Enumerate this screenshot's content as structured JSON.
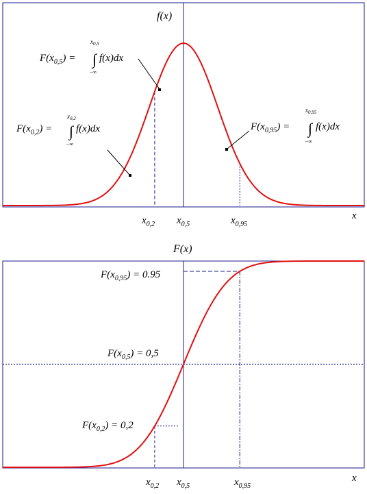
{
  "colors": {
    "curve": "#e01010",
    "frame": "#1a1a8c",
    "guide": "#1a1a8c",
    "text": "#000000"
  },
  "top_panel": {
    "ylabel": "f(x)",
    "xlabel": "x",
    "ticks": [
      {
        "base": "x",
        "sub": "0,2",
        "q": 0.2
      },
      {
        "base": "x",
        "sub": "0,5",
        "q": 0.5
      },
      {
        "base": "x",
        "sub": "0,95",
        "q": 0.95
      }
    ],
    "annotations": [
      {
        "lhs": "F(x",
        "sub": "0,5",
        "rhs": ") =",
        "upper": "x",
        "upper_sub": "0,5",
        "lower": "−∞",
        "integrand": "f(x)dx"
      },
      {
        "lhs": "F(x",
        "sub": "0,2",
        "rhs": ") =",
        "upper": "x",
        "upper_sub": "0,2",
        "lower": "−∞",
        "integrand": "f(x)dx"
      },
      {
        "lhs": "F(x",
        "sub": "0,95",
        "rhs": ") =",
        "upper": "x",
        "upper_sub": "0,95",
        "lower": "−∞",
        "integrand": "f(x)dx"
      }
    ]
  },
  "bottom_panel": {
    "ylabel": "F(x)",
    "xlabel": "x",
    "ticks": [
      {
        "base": "x",
        "sub": "0,2",
        "q": 0.2
      },
      {
        "base": "x",
        "sub": "0,5",
        "q": 0.5
      },
      {
        "base": "x",
        "sub": "0,95",
        "q": 0.95
      }
    ],
    "levels": [
      {
        "lhs": "F(x",
        "sub": "0,95",
        "rhs": ") = 0.95",
        "value": 0.95
      },
      {
        "lhs": "F(x",
        "sub": "0,5",
        "rhs": ") = 0,5",
        "value": 0.5
      },
      {
        "lhs": "F(x",
        "sub": "0,2",
        "rhs": ") = 0,2",
        "value": 0.2
      }
    ]
  },
  "chart_data": {
    "type": "line",
    "distribution": "normal",
    "panels": [
      "density f(x)",
      "cumulative F(x)"
    ],
    "quantiles": [
      0.2,
      0.5,
      0.95
    ]
  }
}
